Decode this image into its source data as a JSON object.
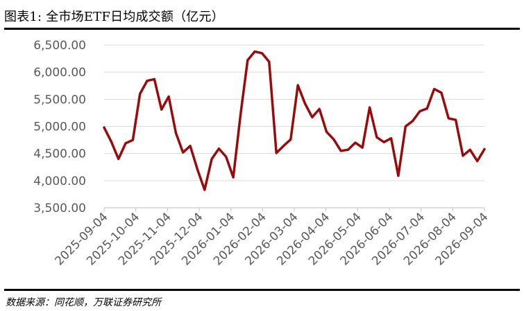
{
  "header": {
    "title": "图表1:  全市场ETF日均成交额（亿元）"
  },
  "footer": {
    "source": "数据来源：同花顺，万联证券研究所"
  },
  "colors": {
    "line": "#9B0A0A",
    "grid": "#D9D9D9",
    "axis": "#BFBFBF",
    "tick_text": "#595959"
  },
  "chart_data": {
    "type": "line",
    "title": "全市场ETF日均成交额（亿元）",
    "xlabel": "",
    "ylabel": "",
    "ylim": [
      3500,
      6500
    ],
    "yticks": [
      3500,
      4000,
      4500,
      5000,
      5500,
      6000,
      6500
    ],
    "ytick_labels": [
      "3,500.00",
      "4,000.00",
      "4,500.00",
      "5,000.00",
      "5,500.00",
      "6,000.00",
      "6,500.00"
    ],
    "xtick_labels": [
      "2025-09-04",
      "2025-10-04",
      "2025-11-04",
      "2025-12-04",
      "2026-01-04",
      "2026-02-04",
      "2026-03-04",
      "2026-04-04",
      "2026-05-04",
      "2026-06-04",
      "2026-07-04",
      "2026-08-04",
      "2026-09-04"
    ],
    "grid": "horizontal",
    "legend": "none",
    "series": [
      {
        "values": [
          4980,
          4720,
          4400,
          4690,
          4750,
          5600,
          5840,
          5870,
          5310,
          5550,
          4880,
          4520,
          4640,
          4210,
          3830,
          4400,
          4590,
          4440,
          4060,
          5210,
          6220,
          6380,
          6350,
          6190,
          4510,
          4640,
          4760,
          5760,
          5420,
          5170,
          5320,
          4900,
          4760,
          4550,
          4570,
          4700,
          4610,
          5350,
          4800,
          4710,
          4780,
          4090,
          5000,
          5100,
          5280,
          5330,
          5690,
          5620,
          5150,
          5120,
          4460,
          4570,
          4360,
          4580
        ]
      }
    ]
  }
}
